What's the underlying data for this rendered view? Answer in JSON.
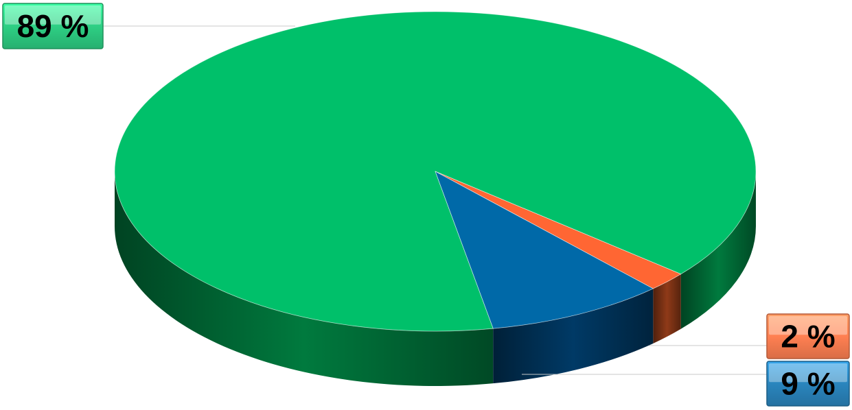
{
  "chart_data": {
    "type": "pie",
    "title": "",
    "style": "3d",
    "slices": [
      {
        "value": 89,
        "label": "89 %",
        "color": "#00c06a",
        "side_color": "#007a3e",
        "label_color": "#2ecf84"
      },
      {
        "value": 2,
        "label": "2 %",
        "color": "#ff6633",
        "side_color": "#8f3a18",
        "label_color": "#ff8052"
      },
      {
        "value": 9,
        "label": "9 %",
        "color": "#0069a8",
        "side_color": "#003a66",
        "label_color": "#2a85bd"
      }
    ]
  }
}
